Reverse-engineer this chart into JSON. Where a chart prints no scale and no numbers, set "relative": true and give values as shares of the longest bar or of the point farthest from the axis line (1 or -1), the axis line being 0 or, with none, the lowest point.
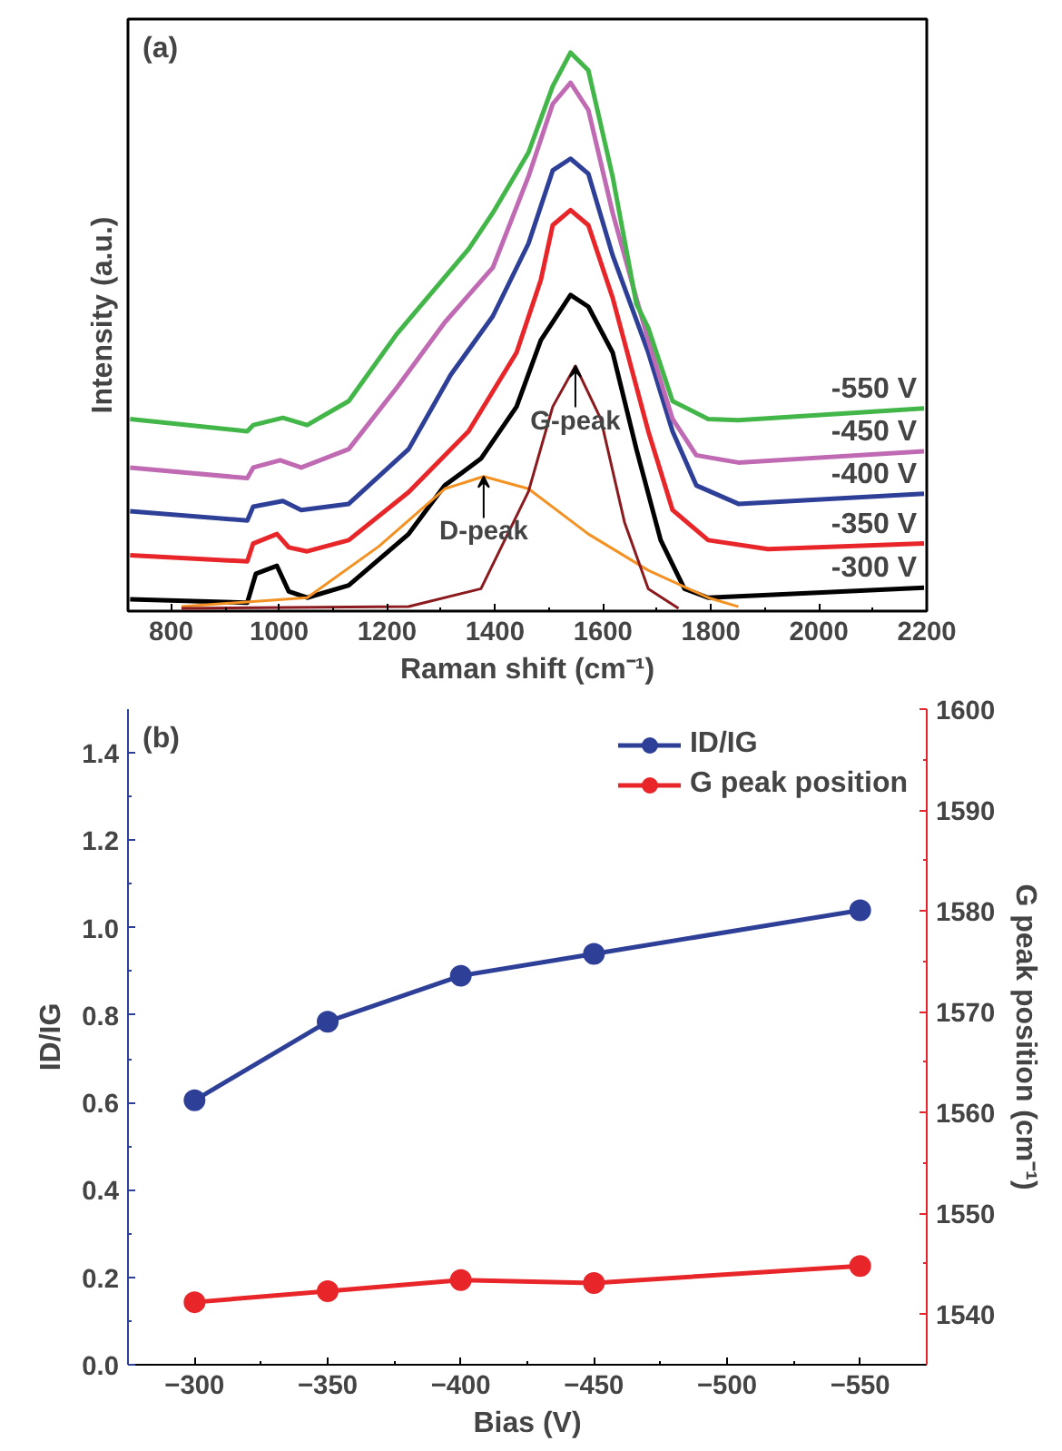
{
  "chart_data": [
    {
      "type": "line",
      "relative": true,
      "xlabel": "Raman shift (cm⁻¹)",
      "ylabel": "Intensity (a.u.)",
      "xlim": [
        720,
        2200
      ],
      "xticks": [
        800,
        1000,
        1200,
        1400,
        1600,
        1800,
        2000,
        2200
      ],
      "annotations": [
        "(a)",
        {
          "text": "D-peak",
          "x": 1379,
          "y": 0.241
        },
        {
          "text": "G-peak",
          "x": 1549,
          "y": 0.439
        }
      ],
      "series": [
        {
          "name": "-300 V",
          "color": "#000000",
          "x": [
            724,
            941,
            957,
            996,
            1018,
            1052,
            1129,
            1240,
            1307,
            1374,
            1440,
            1485,
            1540,
            1573,
            1618,
            1662,
            1707,
            1751,
            1795,
            1906,
            2195
          ],
          "values": [
            0.021,
            0.015,
            0.067,
            0.081,
            0.035,
            0.024,
            0.046,
            0.138,
            0.225,
            0.273,
            0.366,
            0.485,
            0.566,
            0.545,
            0.463,
            0.29,
            0.127,
            0.04,
            0.024,
            0.029,
            0.042
          ]
        },
        {
          "name": "-350 V",
          "color": "#e8262a",
          "x": [
            724,
            941,
            952,
            996,
            1018,
            1052,
            1129,
            1240,
            1351,
            1440,
            1485,
            1507,
            1540,
            1573,
            1618,
            1684,
            1729,
            1795,
            1906,
            2195
          ],
          "values": [
            0.1,
            0.089,
            0.121,
            0.138,
            0.114,
            0.107,
            0.127,
            0.213,
            0.322,
            0.463,
            0.593,
            0.691,
            0.718,
            0.691,
            0.561,
            0.322,
            0.181,
            0.127,
            0.111,
            0.121
          ]
        },
        {
          "name": "-400 V",
          "color": "#2e3f98",
          "x": [
            724,
            941,
            952,
            1007,
            1041,
            1129,
            1240,
            1318,
            1396,
            1462,
            1507,
            1540,
            1573,
            1618,
            1684,
            1729,
            1773,
            1851,
            2195
          ],
          "values": [
            0.179,
            0.162,
            0.187,
            0.197,
            0.181,
            0.192,
            0.29,
            0.423,
            0.528,
            0.658,
            0.789,
            0.81,
            0.783,
            0.637,
            0.463,
            0.322,
            0.225,
            0.192,
            0.21
          ]
        },
        {
          "name": "-450 V",
          "color": "#bf6ab3",
          "x": [
            724,
            941,
            952,
            1002,
            1041,
            1129,
            1218,
            1307,
            1396,
            1462,
            1507,
            1540,
            1573,
            1618,
            1662,
            1684,
            1729,
            1773,
            1851,
            2195
          ],
          "values": [
            0.257,
            0.238,
            0.257,
            0.27,
            0.257,
            0.29,
            0.4,
            0.517,
            0.615,
            0.778,
            0.908,
            0.946,
            0.897,
            0.713,
            0.56,
            0.485,
            0.344,
            0.279,
            0.266,
            0.286
          ]
        },
        {
          "name": "-550 V",
          "color": "#43b649",
          "x": [
            724,
            941,
            952,
            1007,
            1052,
            1129,
            1218,
            1351,
            1396,
            1462,
            1507,
            1540,
            1573,
            1618,
            1662,
            1684,
            1729,
            1795,
            1851,
            2195
          ],
          "values": [
            0.344,
            0.322,
            0.333,
            0.346,
            0.333,
            0.376,
            0.496,
            0.648,
            0.713,
            0.821,
            0.94,
            1.0,
            0.968,
            0.778,
            0.55,
            0.507,
            0.376,
            0.344,
            0.342,
            0.363
          ]
        },
        {
          "color": "#f39123",
          "x": [
            819,
            1052,
            1185,
            1307,
            1379,
            1462,
            1573,
            1684,
            1795,
            1851
          ],
          "values": [
            0.008,
            0.024,
            0.116,
            0.219,
            0.241,
            0.219,
            0.138,
            0.073,
            0.024,
            0.008
          ]
        },
        {
          "color": "#8b1a1f",
          "x": [
            819,
            1240,
            1374,
            1462,
            1507,
            1549,
            1596,
            1640,
            1684,
            1740
          ],
          "values": [
            0.005,
            0.008,
            0.04,
            0.214,
            0.366,
            0.439,
            0.344,
            0.159,
            0.04,
            0.005
          ]
        }
      ]
    },
    {
      "type": "line",
      "xlabel": "Bias (V)",
      "ylabel": "ID/IG",
      "y2label": "G peak position (cm⁻¹)",
      "x": [
        -300,
        -350,
        -400,
        -450,
        -550
      ],
      "xlim": [
        -275,
        -575
      ],
      "xticks": [
        -300,
        -350,
        -400,
        -450,
        -500,
        -550
      ],
      "ylim": [
        0,
        1.5
      ],
      "yticks": [
        {
          "value": 0,
          "label": "0.0"
        },
        0.2,
        0.4,
        0.6,
        0.8,
        {
          "value": 1,
          "label": "1.0"
        },
        1.2,
        1.4
      ],
      "y2lim": [
        1535,
        1600
      ],
      "y2ticks": [
        1540,
        1550,
        1560,
        1570,
        1580,
        1590,
        1600
      ],
      "legend": "top right",
      "marker": "circle",
      "annotations": [
        "(b)"
      ],
      "series": [
        {
          "name": "ID/IG",
          "color": "#2e3f98",
          "values": [
            0.605,
            0.785,
            0.89,
            0.94,
            1.04
          ]
        },
        {
          "name": "G peak position",
          "color": "#e8262a",
          "axis": "y2",
          "values": [
            1541.2,
            1542.3,
            1543.4,
            1543.1,
            1544.8
          ]
        }
      ]
    }
  ]
}
